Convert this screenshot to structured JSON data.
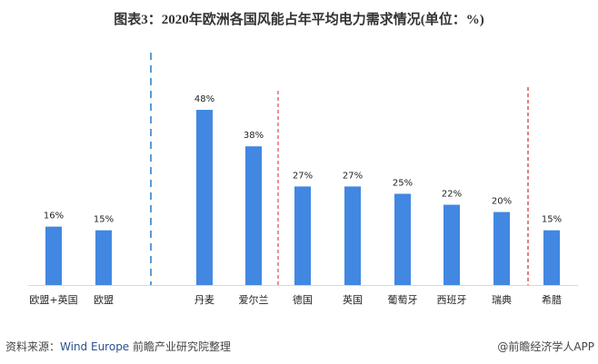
{
  "title": "图表3：2020年欧洲各国风能占年平均电力需求情况(单位：%)",
  "source": {
    "label": "资料来源：",
    "org": "Wind Europe",
    "rest": " 前瞻产业研究院整理"
  },
  "brand": "@前瞻经济学人APP",
  "chart_data": {
    "type": "bar",
    "title": "图表3：2020年欧洲各国风能占年平均电力需求情况(单位：%)",
    "categories": [
      "欧盟+英国",
      "欧盟",
      "丹麦",
      "爱尔兰",
      "德国",
      "英国",
      "葡萄牙",
      "西班牙",
      "瑞典",
      "希腊"
    ],
    "values": [
      16,
      15,
      48,
      38,
      27,
      27,
      25,
      22,
      20,
      15
    ],
    "data_labels": [
      "16%",
      "15%",
      "48%",
      "38%",
      "27%",
      "27%",
      "25%",
      "22%",
      "20%",
      "15%"
    ],
    "ylim": [
      0,
      48
    ],
    "grid": false,
    "bar_color": "#4287e1",
    "dividers": [
      {
        "after": "欧盟",
        "color": "#5b9bd5"
      },
      {
        "after": "爱尔兰",
        "color": "#e02020"
      },
      {
        "after": "瑞典",
        "color": "#c00000"
      }
    ]
  }
}
